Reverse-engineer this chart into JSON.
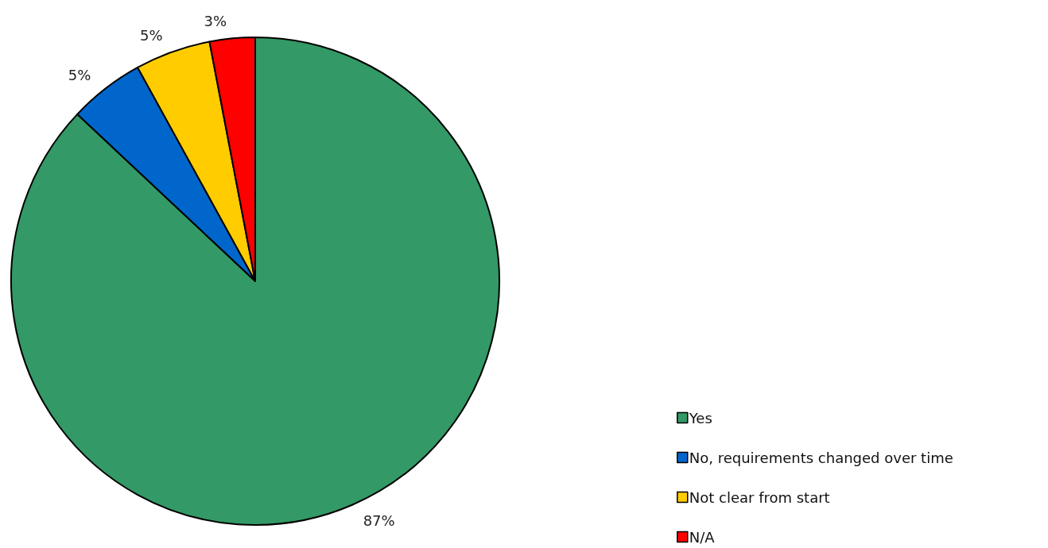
{
  "chart_data": {
    "type": "pie",
    "categories": [
      "Yes",
      "No, requirements changed over time",
      "Not clear from start",
      "N/A"
    ],
    "values": [
      87,
      5,
      5,
      3
    ],
    "colors": [
      "#339966",
      "#0066cc",
      "#ffcc00",
      "#ff0000"
    ],
    "value_labels": [
      "87%",
      "5%",
      "5%",
      "3%"
    ],
    "legend": "bottom right"
  }
}
